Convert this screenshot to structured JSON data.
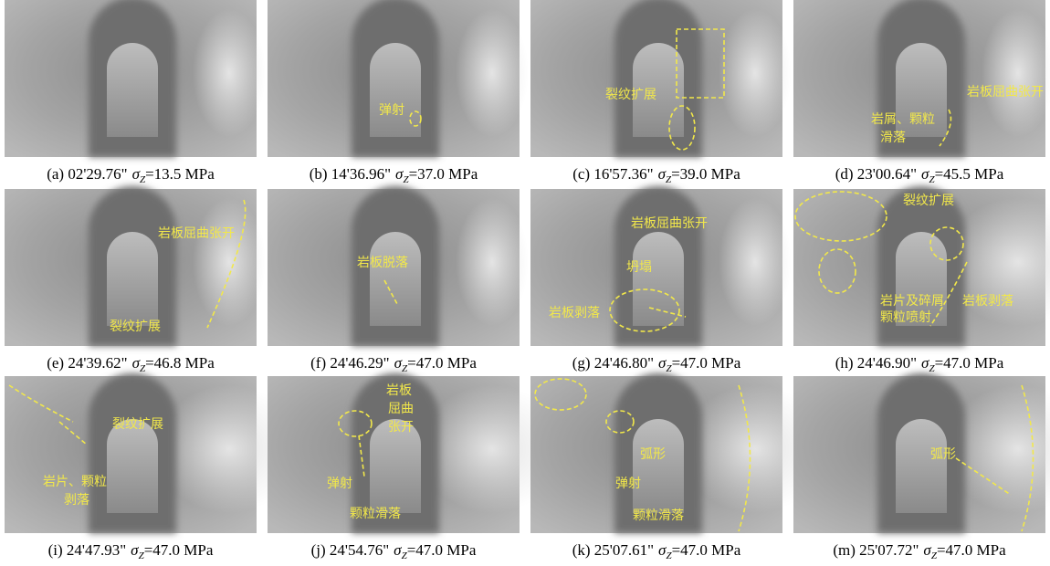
{
  "panels": [
    {
      "caption": {
        "prefix": "(a) 02'29.76\"",
        "symbol": "σ",
        "subscript": "Z",
        "suffix": "=13.5 MPa"
      },
      "annotations": []
    },
    {
      "caption": {
        "prefix": "(b) 14'36.96\"",
        "symbol": "σ",
        "subscript": "Z",
        "suffix": "=37.0 MPa"
      },
      "annotations": [
        "弹射"
      ]
    },
    {
      "caption": {
        "prefix": "(c) 16'57.36\"",
        "symbol": "σ",
        "subscript": "Z",
        "suffix": "=39.0 MPa"
      },
      "annotations": [
        "裂纹扩展"
      ]
    },
    {
      "caption": {
        "prefix": "(d) 23'00.64\"",
        "symbol": "σ",
        "subscript": "Z",
        "suffix": "=45.5 MPa"
      },
      "annotations": [
        "岩板屈曲张开",
        "岩屑、颗粒",
        "滑落"
      ]
    },
    {
      "caption": {
        "prefix": "(e) 24'39.62\"",
        "symbol": "σ",
        "subscript": "Z",
        "suffix": "=46.8 MPa"
      },
      "annotations": [
        "岩板屈曲张开",
        "裂纹扩展"
      ]
    },
    {
      "caption": {
        "prefix": "(f) 24'46.29\"",
        "symbol": "σ",
        "subscript": "Z",
        "suffix": "=47.0 MPa"
      },
      "annotations": [
        "岩板脱落"
      ]
    },
    {
      "caption": {
        "prefix": "(g) 24'46.80\"",
        "symbol": "σ",
        "subscript": "Z",
        "suffix": "=47.0 MPa"
      },
      "annotations": [
        "岩板屈曲张开",
        "坍塌",
        "岩板剥落"
      ]
    },
    {
      "caption": {
        "prefix": "(h) 24'46.90\"",
        "symbol": "σ",
        "subscript": "Z",
        "suffix": "=47.0 MPa"
      },
      "annotations": [
        "裂纹扩展",
        "岩片及碎屑",
        "颗粒喷射",
        "岩板剥落"
      ]
    },
    {
      "caption": {
        "prefix": "(i) 24'47.93\"",
        "symbol": "σ",
        "subscript": "Z",
        "suffix": "=47.0 MPa"
      },
      "annotations": [
        "裂纹扩展",
        "岩片、颗粒",
        "剥落"
      ]
    },
    {
      "caption": {
        "prefix": "(j) 24'54.76\"",
        "symbol": "σ",
        "subscript": "Z",
        "suffix": "=47.0 MPa"
      },
      "annotations": [
        "岩板",
        "屈曲",
        "张开",
        "弹射",
        "颗粒滑落"
      ]
    },
    {
      "caption": {
        "prefix": "(k) 25'07.61\"",
        "symbol": "σ",
        "subscript": "Z",
        "suffix": "=47.0 MPa"
      },
      "annotations": [
        "弧形",
        "弹射",
        "颗粒滑落"
      ]
    },
    {
      "caption": {
        "prefix": "(m) 25'07.72\"",
        "symbol": "σ",
        "subscript": "Z",
        "suffix": "=47.0 MPa"
      },
      "annotations": [
        "弧形"
      ]
    }
  ]
}
